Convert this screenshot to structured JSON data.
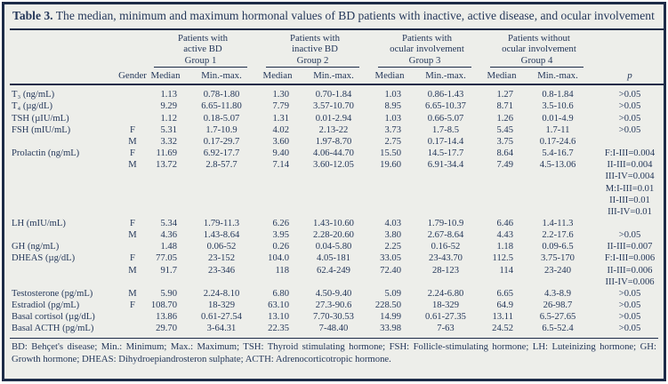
{
  "colors": {
    "background": "#edeeea",
    "border": "#1d2c48",
    "text": "#25385a"
  },
  "table": {
    "title_label": "Table 3.",
    "title_text": "The median, minimum and maximum hormonal values of BD patients with inactive, active disease, and ocular involvement",
    "groups": [
      {
        "line1": "Patients with",
        "line2": "active BD",
        "line3": "Group 1"
      },
      {
        "line1": "Patients with",
        "line2": "inactive BD",
        "line3": "Group 2"
      },
      {
        "line1": "Patients with",
        "line2": "ocular involvement",
        "line3": "Group 3"
      },
      {
        "line1": "Patients without",
        "line2": "ocular involvement",
        "line3": "Group 4"
      }
    ],
    "col_headers": {
      "gender": "Gender",
      "median": "Median",
      "minmax": "Min.-max.",
      "p": "p"
    },
    "rows": [
      {
        "label": "T₃ (ng/mL)",
        "gender": "",
        "g1m": "1.13",
        "g1r": "0.78-1.80",
        "g2m": "1.30",
        "g2r": "0.70-1.84",
        "g3m": "1.03",
        "g3r": "0.86-1.43",
        "g4m": "1.27",
        "g4r": "0.8-1.84",
        "p": ">0.05"
      },
      {
        "label": "T₄ (µg/dL)",
        "gender": "",
        "g1m": "9.29",
        "g1r": "6.65-11.80",
        "g2m": "7.79",
        "g2r": "3.57-10.70",
        "g3m": "8.95",
        "g3r": "6.65-10.37",
        "g4m": "8.71",
        "g4r": "3.5-10.6",
        "p": ">0.05"
      },
      {
        "label": "TSH (µIU/mL)",
        "gender": "",
        "g1m": "1.12",
        "g1r": "0.18-5.07",
        "g2m": "1.31",
        "g2r": "0.01-2.94",
        "g3m": "1.03",
        "g3r": "0.66-5.07",
        "g4m": "1.26",
        "g4r": "0.01-4.9",
        "p": ">0.05"
      },
      {
        "label": "FSH (mIU/mL)",
        "gender": "F",
        "g1m": "5.31",
        "g1r": "1.7-10.9",
        "g2m": "4.02",
        "g2r": "2.13-22",
        "g3m": "3.73",
        "g3r": "1.7-8.5",
        "g4m": "5.45",
        "g4r": "1.7-11",
        "p": ">0.05"
      },
      {
        "label": "",
        "gender": "M",
        "g1m": "3.32",
        "g1r": "0.17-29.7",
        "g2m": "3.60",
        "g2r": "1.97-8.70",
        "g3m": "2.75",
        "g3r": "0.17-14.4",
        "g4m": "3.75",
        "g4r": "0.17-24.6",
        "p": ""
      },
      {
        "label": "Prolactin (ng/mL)",
        "gender": "F",
        "g1m": "11.69",
        "g1r": "6.92-17.7",
        "g2m": "9.40",
        "g2r": "4.06-44.70",
        "g3m": "15.50",
        "g3r": "14.5-17.7",
        "g4m": "8.64",
        "g4r": "5.4-16.7",
        "p": "F:I-III=0.004"
      },
      {
        "label": "",
        "gender": "M",
        "g1m": "13.72",
        "g1r": "2.8-57.7",
        "g2m": "7.14",
        "g2r": "3.60-12.05",
        "g3m": "19.60",
        "g3r": "6.91-34.4",
        "g4m": "7.49",
        "g4r": "4.5-13.06",
        "p": "II-III=0.004"
      },
      {
        "label": "",
        "gender": "",
        "g1m": "",
        "g1r": "",
        "g2m": "",
        "g2r": "",
        "g3m": "",
        "g3r": "",
        "g4m": "",
        "g4r": "",
        "p": "III-IV=0.004"
      },
      {
        "label": "",
        "gender": "",
        "g1m": "",
        "g1r": "",
        "g2m": "",
        "g2r": "",
        "g3m": "",
        "g3r": "",
        "g4m": "",
        "g4r": "",
        "p": "M:I-III=0.01"
      },
      {
        "label": "",
        "gender": "",
        "g1m": "",
        "g1r": "",
        "g2m": "",
        "g2r": "",
        "g3m": "",
        "g3r": "",
        "g4m": "",
        "g4r": "",
        "p": "II-III=0.01"
      },
      {
        "label": "",
        "gender": "",
        "g1m": "",
        "g1r": "",
        "g2m": "",
        "g2r": "",
        "g3m": "",
        "g3r": "",
        "g4m": "",
        "g4r": "",
        "p": "III-IV=0.01"
      },
      {
        "label": "LH (mIU/mL)",
        "gender": "F",
        "g1m": "5.34",
        "g1r": "1.79-11.3",
        "g2m": "6.26",
        "g2r": "1.43-10.60",
        "g3m": "4.03",
        "g3r": "1.79-10.9",
        "g4m": "6.46",
        "g4r": "1.4-11.3",
        "p": ""
      },
      {
        "label": "",
        "gender": "M",
        "g1m": "4.36",
        "g1r": "1.43-8.64",
        "g2m": "3.95",
        "g2r": "2.28-20.60",
        "g3m": "3.80",
        "g3r": "2.67-8.64",
        "g4m": "4.43",
        "g4r": "2.2-17.6",
        "p": ">0.05"
      },
      {
        "label": "GH (ng/mL)",
        "gender": "",
        "g1m": "1.48",
        "g1r": "0.06-52",
        "g2m": "0.26",
        "g2r": "0.04-5.80",
        "g3m": "2.25",
        "g3r": "0.16-52",
        "g4m": "1.18",
        "g4r": "0.09-6.5",
        "p": "II-III=0.007"
      },
      {
        "label": "DHEAS (µg/dL)",
        "gender": "F",
        "g1m": "77.05",
        "g1r": "23-152",
        "g2m": "104.0",
        "g2r": "4.05-181",
        "g3m": "33.05",
        "g3r": "23-43.70",
        "g4m": "112.5",
        "g4r": "3.75-170",
        "p": "F:I-III=0.006"
      },
      {
        "label": "",
        "gender": "M",
        "g1m": "91.7",
        "g1r": "23-346",
        "g2m": "118",
        "g2r": "62.4-249",
        "g3m": "72.40",
        "g3r": "28-123",
        "g4m": "114",
        "g4r": "23-240",
        "p": "II-III=0.006"
      },
      {
        "label": "",
        "gender": "",
        "g1m": "",
        "g1r": "",
        "g2m": "",
        "g2r": "",
        "g3m": "",
        "g3r": "",
        "g4m": "",
        "g4r": "",
        "p": "III-IV=0.006"
      },
      {
        "label": "Testosterone (pg/mL)",
        "gender": "M",
        "g1m": "5.90",
        "g1r": "2.24-8.10",
        "g2m": "6.80",
        "g2r": "4.50-9.40",
        "g3m": "5.09",
        "g3r": "2.24-6.80",
        "g4m": "6.65",
        "g4r": "4.3-8.9",
        "p": ">0.05"
      },
      {
        "label": "Estradiol (pg/mL)",
        "gender": "F",
        "g1m": "108.70",
        "g1r": "18-329",
        "g2m": "63.10",
        "g2r": "27.3-90.6",
        "g3m": "228.50",
        "g3r": "18-329",
        "g4m": "64.9",
        "g4r": "26-98.7",
        "p": ">0.05"
      },
      {
        "label": "Basal cortisol (µg/dL)",
        "gender": "",
        "g1m": "13.86",
        "g1r": "0.61-27.54",
        "g2m": "13.10",
        "g2r": "7.70-30.53",
        "g3m": "14.99",
        "g3r": "0.61-27.35",
        "g4m": "13.11",
        "g4r": "6.5-27.65",
        "p": ">0.05"
      },
      {
        "label": "Basal ACTH (pg/mL)",
        "gender": "",
        "g1m": "29.70",
        "g1r": "3-64.31",
        "g2m": "22.35",
        "g2r": "7-48.40",
        "g3m": "33.98",
        "g3r": "7-63",
        "g4m": "24.52",
        "g4r": "6.5-52.4",
        "p": ">0.05"
      }
    ],
    "footnote": "BD: Behçet's disease; Min.: Minimum; Max.: Maximum; TSH: Thyroid stimulating hormone; FSH: Follicle-stimulating hormone; LH: Luteinizing hormone; GH: Growth hormone; DHEAS: Dihydroepiandrosteron sulphate; ACTH: Adrenocorticotropic hormone."
  }
}
